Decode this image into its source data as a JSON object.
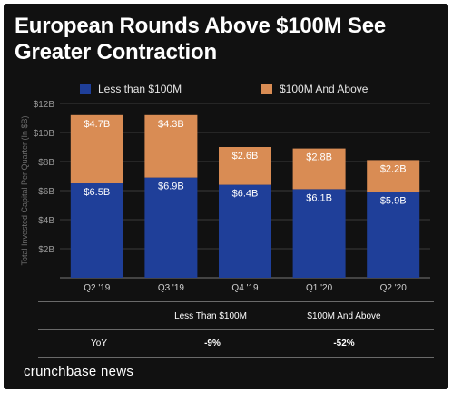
{
  "title": "European Rounds Above $100M See Greater Contraction",
  "colors": {
    "background": "#111111",
    "under_100m": "#1f3f99",
    "above_100m": "#d98c54"
  },
  "chart_data": {
    "type": "bar",
    "stacked": true,
    "categories": [
      "Q2 '19",
      "Q3 '19",
      "Q4 '19",
      "Q1 '20",
      "Q2 '20"
    ],
    "series": [
      {
        "name": "Less than $100M",
        "values": [
          6.5,
          6.9,
          6.4,
          6.1,
          5.9
        ],
        "labels": [
          "$6.5B",
          "$6.9B",
          "$6.4B",
          "$6.1B",
          "$5.9B"
        ]
      },
      {
        "name": "$100M And Above",
        "values": [
          4.7,
          4.3,
          2.6,
          2.8,
          2.2
        ],
        "labels": [
          "$4.7B",
          "$4.3B",
          "$2.6B",
          "$2.8B",
          "$2.2B"
        ]
      }
    ],
    "ylabel": "Total Invested Capital Per Quarter (In $B)",
    "yticks": [
      0,
      2,
      4,
      6,
      8,
      10,
      12
    ],
    "ytick_labels": [
      "",
      "$2B",
      "$4B",
      "$6B",
      "$8B",
      "$10B",
      "$12B"
    ],
    "ylim": [
      0,
      12
    ],
    "grid": true,
    "legend": "top"
  },
  "table": {
    "headers": [
      "",
      "Less Than $100M",
      "$100M And Above"
    ],
    "rows": [
      {
        "label": "YoY",
        "values": [
          "-9%",
          "-52%"
        ]
      }
    ]
  },
  "brand": "crunchbase news"
}
